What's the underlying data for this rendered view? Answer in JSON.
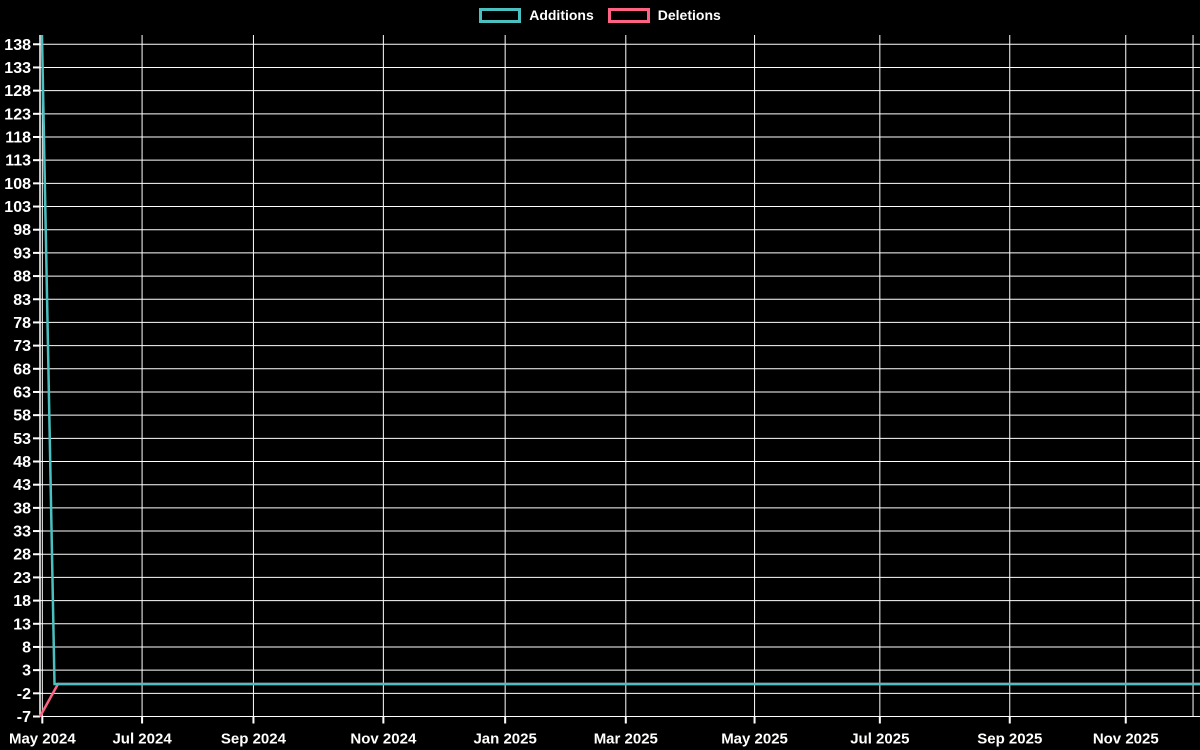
{
  "legend": {
    "items": [
      {
        "label": "Additions",
        "color": "#4bc0c0"
      },
      {
        "label": "Deletions",
        "color": "#ff6384"
      }
    ]
  },
  "chart_data": {
    "type": "line",
    "title": "",
    "background": "#000000",
    "grid_color": "#ffffff",
    "text_color": "#ffffff",
    "grid": true,
    "legend_position": "top-center",
    "x_axis": {
      "kind": "time",
      "range": [
        "May 2024",
        "Dec 2025"
      ],
      "ticks": [
        {
          "label": "May 2024",
          "pos": 0.002
        },
        {
          "label": "Jul 2024",
          "pos": 0.088
        },
        {
          "label": "Sep 2024",
          "pos": 0.184
        },
        {
          "label": "Nov 2024",
          "pos": 0.296
        },
        {
          "label": "Jan 2025",
          "pos": 0.401
        },
        {
          "label": "Mar 2025",
          "pos": 0.505
        },
        {
          "label": "May 2025",
          "pos": 0.616
        },
        {
          "label": "Jul 2025",
          "pos": 0.724
        },
        {
          "label": "Sep 2025",
          "pos": 0.836
        },
        {
          "label": "Nov 2025",
          "pos": 0.936
        },
        {
          "label": "",
          "pos": 0.994
        }
      ]
    },
    "y_axis": {
      "ylim": [
        -7,
        140
      ],
      "ticks": [
        138,
        133,
        128,
        123,
        118,
        113,
        108,
        103,
        98,
        93,
        88,
        83,
        78,
        73,
        68,
        63,
        58,
        53,
        48,
        43,
        38,
        33,
        28,
        23,
        18,
        13,
        8,
        3,
        -2,
        -7
      ]
    },
    "series": [
      {
        "name": "Additions",
        "color": "#4bc0c0",
        "points": [
          [
            0.0017,
            140
          ],
          [
            0.0125,
            0
          ],
          [
            1,
            0
          ]
        ]
      },
      {
        "name": "Deletions",
        "color": "#ff6384",
        "points": [
          [
            0,
            -7
          ],
          [
            0.0155,
            0
          ],
          [
            1,
            0
          ]
        ]
      }
    ]
  }
}
